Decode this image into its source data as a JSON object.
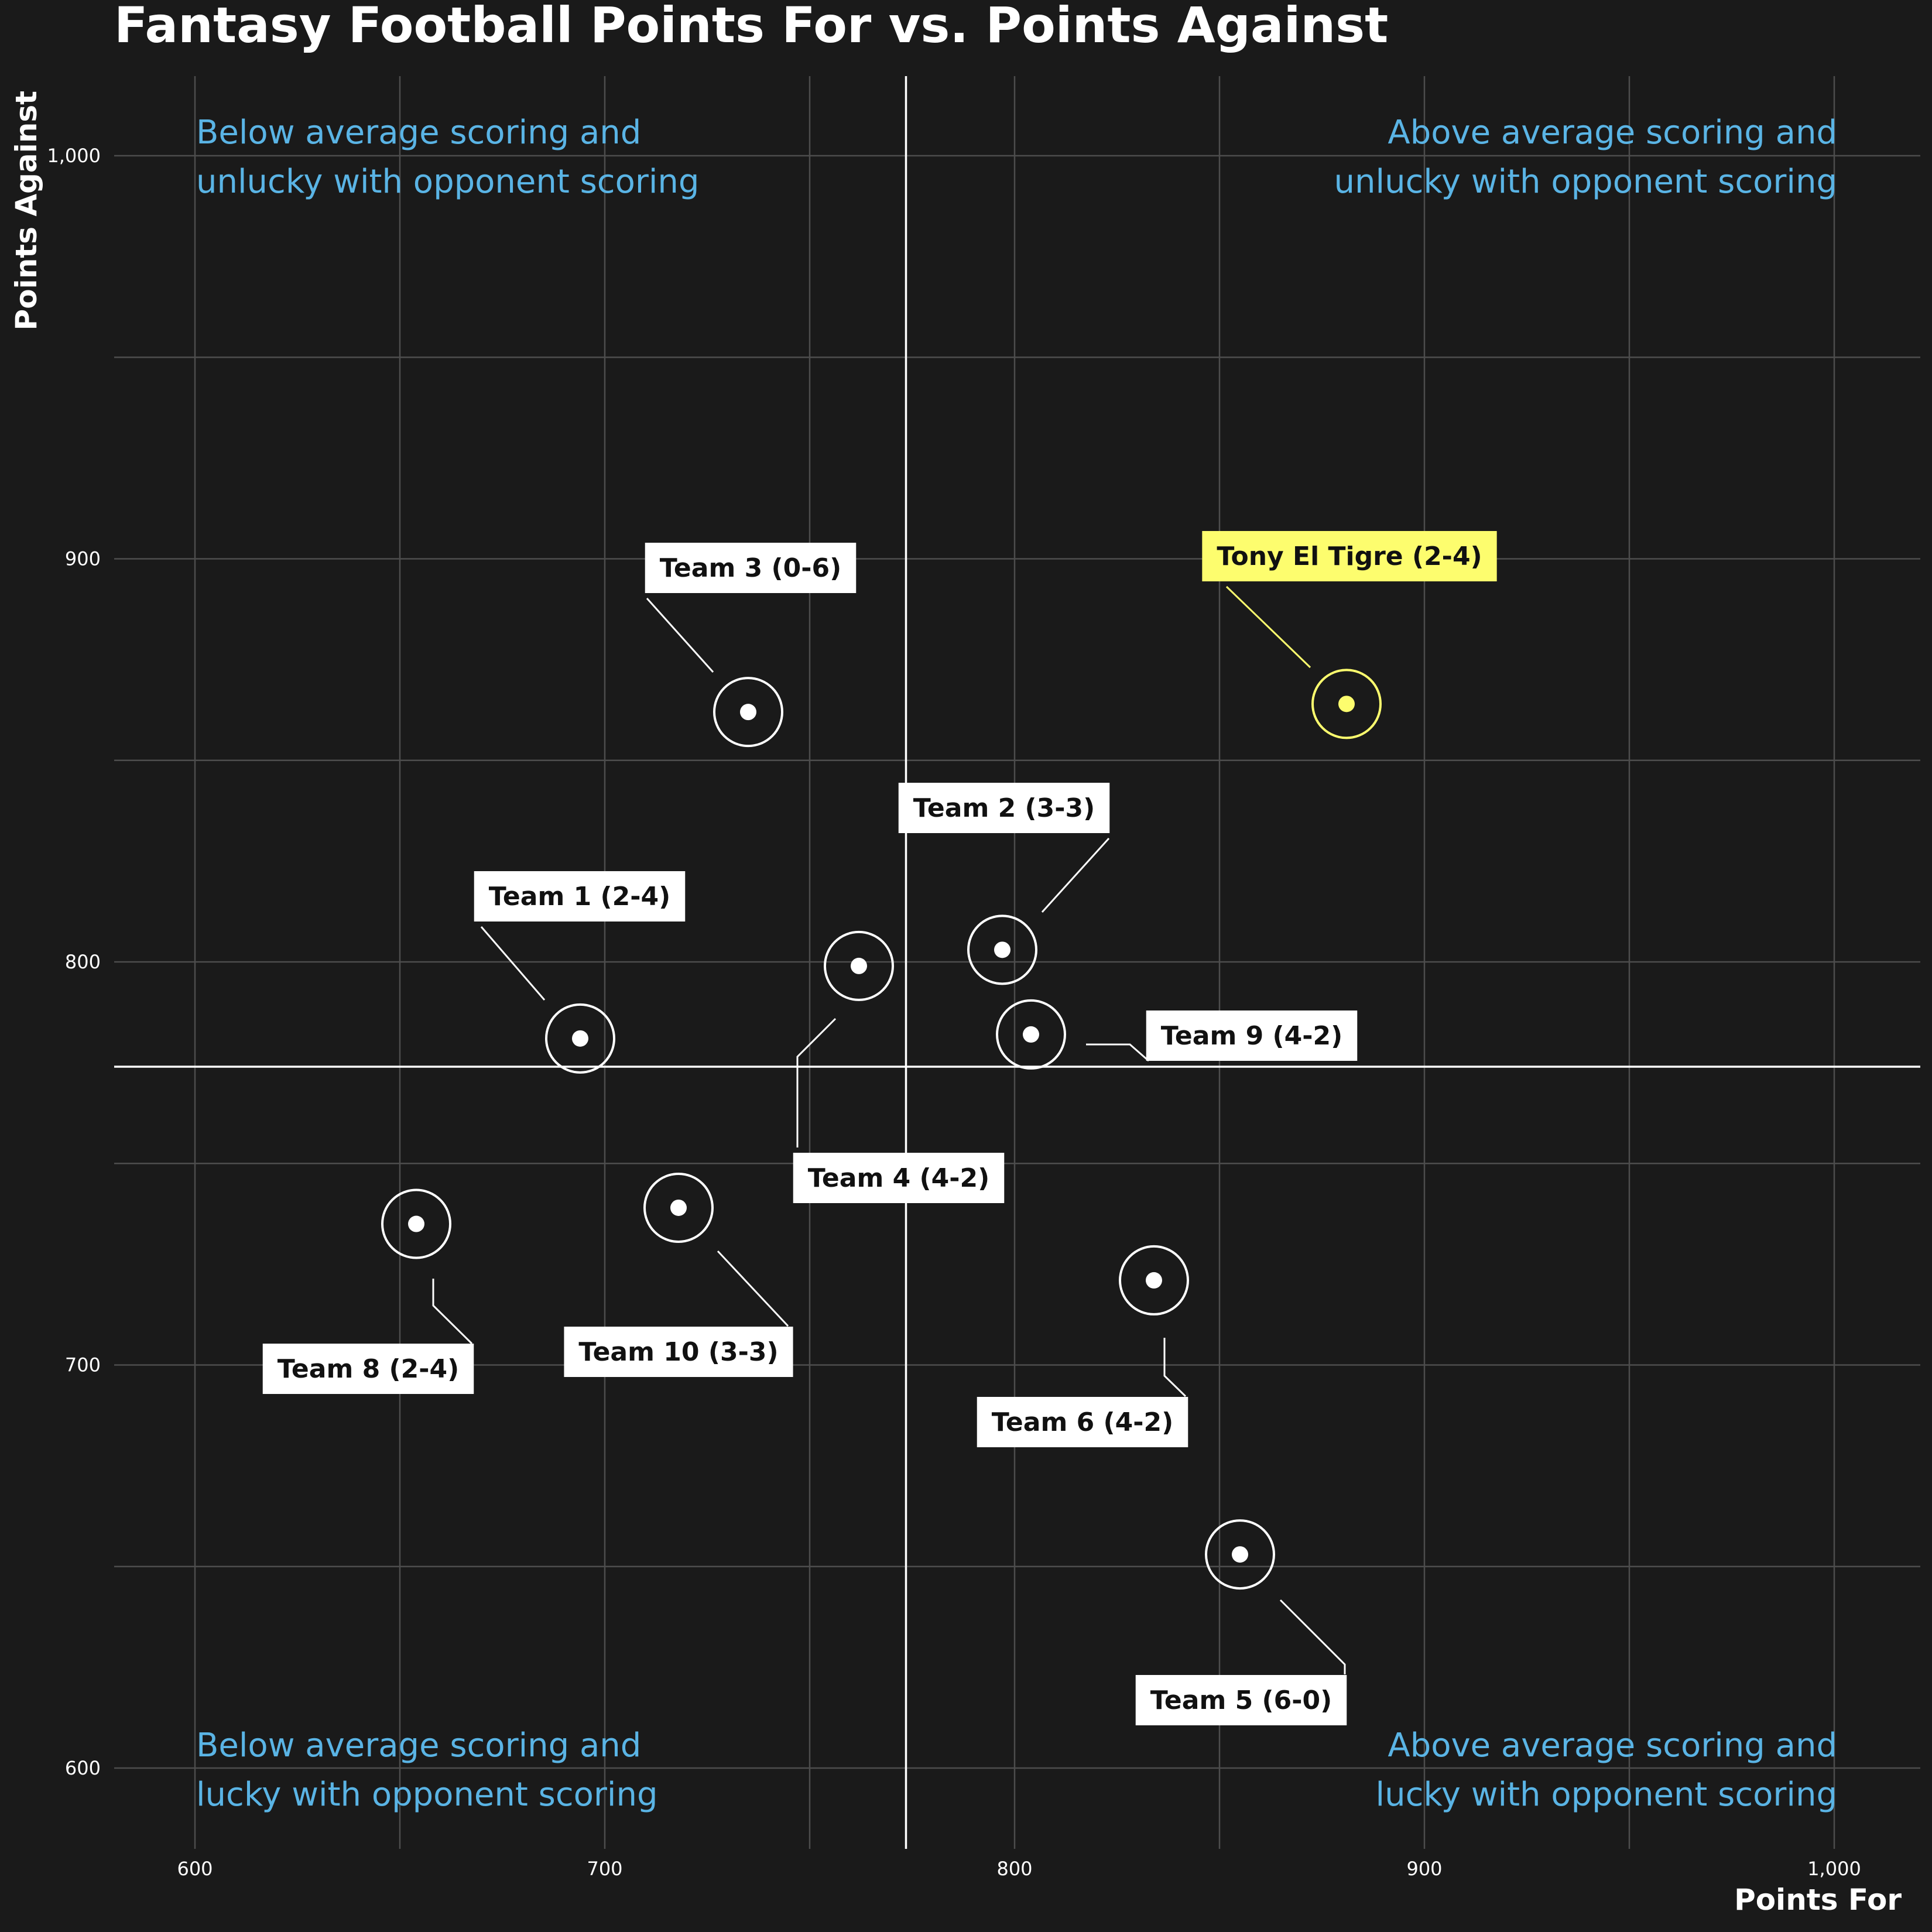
{
  "chart_data": {
    "type": "scatter",
    "title": "Fantasy Football Points For vs. Points Against",
    "xlabel": "Points For",
    "ylabel": "Points Against",
    "xlim": [
      580,
      1020
    ],
    "ylim": [
      580,
      1020
    ],
    "xticks": [
      600,
      700,
      800,
      900,
      1000
    ],
    "xtick_labels": [
      "600",
      "700",
      "800",
      "900",
      "1,000"
    ],
    "yticks": [
      600,
      700,
      800,
      900,
      1000
    ],
    "ytick_labels": [
      "600",
      "700",
      "800",
      "900",
      "1,000"
    ],
    "grid": true,
    "reference_lines": {
      "x_mean": 773.5,
      "y_mean": 774
    },
    "quadrant_labels": {
      "top_left": [
        "Below average scoring and",
        "unlucky with opponent scoring"
      ],
      "top_right": [
        "Above average scoring and",
        "unlucky with opponent scoring"
      ],
      "bottom_left": [
        "Below average scoring and",
        "lucky with opponent scoring"
      ],
      "bottom_right": [
        "Above average scoring and",
        "lucky with opponent scoring"
      ]
    },
    "highlight_color": "#fdfd6e",
    "point_color": "#ffffff",
    "quadrant_label_color": "#5ab4e5",
    "points": [
      {
        "label": "Tony El Tigre (2-4)",
        "x": 881,
        "y": 864,
        "highlight": true
      },
      {
        "label": "Team 3 (0-6)",
        "x": 735,
        "y": 862
      },
      {
        "label": "Team 2 (3-3)",
        "x": 797,
        "y": 803
      },
      {
        "label": "Team 1 (2-4)",
        "x": 694,
        "y": 781
      },
      {
        "label": "Team 4 (4-2)",
        "x": 762,
        "y": 799
      },
      {
        "label": "Team 9 (4-2)",
        "x": 804,
        "y": 782
      },
      {
        "label": "Team 8 (2-4)",
        "x": 654,
        "y": 735
      },
      {
        "label": "Team 10 (3-3)",
        "x": 718,
        "y": 739
      },
      {
        "label": "Team 6 (4-2)",
        "x": 834,
        "y": 721
      },
      {
        "label": "Team 5 (6-0)",
        "x": 855,
        "y": 653
      }
    ]
  }
}
